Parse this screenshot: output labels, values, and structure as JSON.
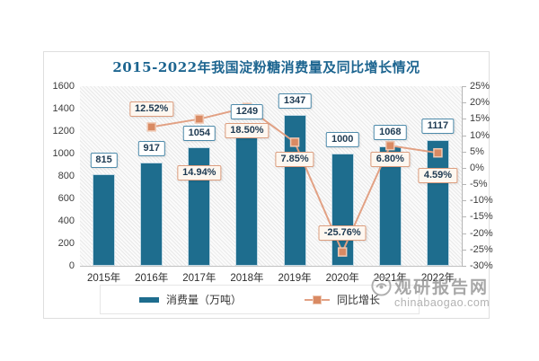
{
  "title": "2015-2022年我国淀粉糖消费量及同比增长情况",
  "watermark": {
    "site_name": "观研报告网",
    "site_url": "chinabaogao.com"
  },
  "legend": [
    {
      "label": "消费量（万吨）",
      "type": "bar"
    },
    {
      "label": "同比增长",
      "type": "line"
    }
  ],
  "colors": {
    "bar": "#1e6d8e",
    "line": "#e2a184",
    "marker_fill": "#d98a63",
    "marker_border": "#efc9b4",
    "title": "#1d6590",
    "value_box_border": "#4e8bab",
    "pct_box_border": "#dd9e7f",
    "pct_box_bg": "#fdf7f0",
    "label_text": "#1e3a52"
  },
  "chart_data": {
    "type": "bar+line",
    "title": "2015-2022年我国淀粉糖消费量及同比增长情况",
    "categories": [
      "2015年",
      "2016年",
      "2017年",
      "2018年",
      "2019年",
      "2020年",
      "2021年",
      "2022年"
    ],
    "series": [
      {
        "name": "消费量（万吨）",
        "type": "bar",
        "axis": "left",
        "values": [
          815,
          917,
          1054,
          1249,
          1347,
          1000,
          1068,
          1117
        ],
        "labels": [
          "815",
          "917",
          "1054",
          "1249",
          "1347",
          "1000",
          "1068",
          "1117"
        ]
      },
      {
        "name": "同比增长",
        "type": "line",
        "axis": "right",
        "values": [
          null,
          12.52,
          14.94,
          18.5,
          7.85,
          -25.76,
          6.8,
          4.59
        ],
        "labels": [
          null,
          "12.52%",
          "14.94%",
          "18.50%",
          "7.85%",
          "-25.76%",
          "6.80%",
          "4.59%"
        ]
      }
    ],
    "left_axis": {
      "min": 0,
      "max": 1600,
      "ticks": [
        "1600",
        "1400",
        "1200",
        "1000",
        "800",
        "600",
        "400",
        "200",
        "0"
      ]
    },
    "right_axis": {
      "min": -30,
      "max": 25,
      "ticks": [
        "25%",
        "20%",
        "15%",
        "10%",
        "5%",
        "0%",
        "-5%",
        "-10%",
        "-15%",
        "-20%",
        "-25%",
        "-30%"
      ]
    },
    "layout_hints": {
      "grid": false,
      "legend_position": "bottom",
      "plot_background": "diagonal-hatch",
      "pct_label_dy": [
        null,
        -28,
        51,
        17,
        11,
        -30,
        7,
        17
      ],
      "bar_label_dy": -24
    }
  }
}
